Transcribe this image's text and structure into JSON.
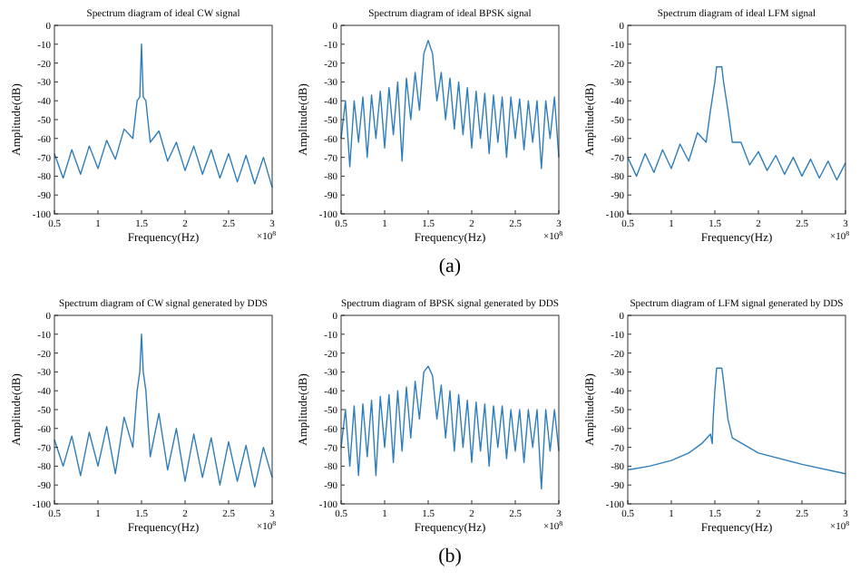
{
  "chart_data": [
    {
      "type": "line",
      "title": "Spectrum diagram of ideal CW signal",
      "xlabel": "Frequency(Hz)",
      "ylabel": "Amplitude(dB)",
      "annotations": [
        "×10$^{8}$"
      ],
      "xlim": [
        0.5,
        3
      ],
      "xticks": [
        0.5,
        1,
        1.5,
        2,
        2.5,
        3
      ],
      "ylim": [
        -100,
        0
      ],
      "yticks": [
        -100,
        -90,
        -80,
        -70,
        -60,
        -50,
        -40,
        -30,
        -20,
        -10,
        0
      ],
      "grid": false,
      "marker": "none",
      "line_style": "solid",
      "x": [
        0.5,
        0.6,
        0.7,
        0.8,
        0.9,
        1.0,
        1.1,
        1.2,
        1.3,
        1.4,
        1.45,
        1.48,
        1.5,
        1.52,
        1.55,
        1.6,
        1.7,
        1.8,
        1.9,
        2.0,
        2.1,
        2.2,
        2.3,
        2.4,
        2.5,
        2.6,
        2.7,
        2.8,
        2.9,
        3.0
      ],
      "series": [
        {
          "color": "#2f7ebc",
          "values": [
            -68,
            -81,
            -66,
            -79,
            -64,
            -76,
            -61,
            -71,
            -55,
            -60,
            -40,
            -38,
            -10,
            -38,
            -40,
            -62,
            -56,
            -72,
            -62,
            -77,
            -64,
            -79,
            -66,
            -81,
            -68,
            -83,
            -69,
            -84,
            -70,
            -86
          ]
        }
      ]
    },
    {
      "type": "line",
      "title": "Spectrum diagram of ideal BPSK signal",
      "xlabel": "Frequency(Hz)",
      "ylabel": "Amplitude(dB)",
      "annotations": [
        "×10$^{8}$",
        "(a)"
      ],
      "xlim": [
        0.5,
        3
      ],
      "xticks": [
        0.5,
        1,
        1.5,
        2,
        2.5,
        3
      ],
      "ylim": [
        -100,
        0
      ],
      "yticks": [
        -100,
        -90,
        -80,
        -70,
        -60,
        -50,
        -40,
        -30,
        -20,
        -10,
        0
      ],
      "grid": false,
      "marker": "none",
      "line_style": "solid",
      "x": [
        0.5,
        0.55,
        0.6,
        0.65,
        0.7,
        0.75,
        0.8,
        0.85,
        0.9,
        0.95,
        1.0,
        1.05,
        1.1,
        1.15,
        1.2,
        1.25,
        1.3,
        1.35,
        1.4,
        1.45,
        1.5,
        1.55,
        1.6,
        1.65,
        1.7,
        1.75,
        1.8,
        1.85,
        1.9,
        1.95,
        2.0,
        2.05,
        2.1,
        2.15,
        2.2,
        2.25,
        2.3,
        2.35,
        2.4,
        2.45,
        2.5,
        2.55,
        2.6,
        2.65,
        2.7,
        2.75,
        2.8,
        2.85,
        2.9,
        2.95,
        3.0
      ],
      "series": [
        {
          "color": "#2f7ebc",
          "values": [
            -60,
            -40,
            -75,
            -40,
            -62,
            -38,
            -70,
            -37,
            -60,
            -35,
            -65,
            -33,
            -58,
            -30,
            -72,
            -28,
            -50,
            -25,
            -45,
            -15,
            -8,
            -15,
            -40,
            -25,
            -50,
            -28,
            -55,
            -30,
            -58,
            -33,
            -65,
            -35,
            -60,
            -36,
            -68,
            -37,
            -62,
            -38,
            -70,
            -38,
            -60,
            -39,
            -66,
            -40,
            -62,
            -40,
            -76,
            -40,
            -60,
            -38,
            -70
          ]
        }
      ]
    },
    {
      "type": "line",
      "title": "Spectrum diagram of ideal LFM signal",
      "xlabel": "Frequency(Hz)",
      "ylabel": "Amplitude(dB)",
      "annotations": [
        "×10$^{8}$"
      ],
      "xlim": [
        0.5,
        3
      ],
      "xticks": [
        0.5,
        1,
        1.5,
        2,
        2.5,
        3
      ],
      "ylim": [
        -100,
        0
      ],
      "yticks": [
        -100,
        -90,
        -80,
        -70,
        -60,
        -50,
        -40,
        -30,
        -20,
        -10,
        0
      ],
      "grid": false,
      "marker": "none",
      "line_style": "solid",
      "x": [
        0.5,
        0.6,
        0.7,
        0.8,
        0.9,
        1.0,
        1.1,
        1.2,
        1.3,
        1.4,
        1.45,
        1.5,
        1.52,
        1.58,
        1.6,
        1.65,
        1.7,
        1.8,
        1.9,
        2.0,
        2.1,
        2.2,
        2.3,
        2.4,
        2.5,
        2.6,
        2.7,
        2.8,
        2.9,
        3.0
      ],
      "series": [
        {
          "color": "#2f7ebc",
          "values": [
            -70,
            -80,
            -68,
            -78,
            -66,
            -76,
            -63,
            -72,
            -57,
            -62,
            -45,
            -30,
            -22,
            -22,
            -30,
            -45,
            -62,
            -62,
            -74,
            -67,
            -77,
            -69,
            -79,
            -70,
            -80,
            -71,
            -81,
            -72,
            -82,
            -73
          ]
        }
      ]
    },
    {
      "type": "line",
      "title": "Spectrum diagram of CW signal generated by DDS",
      "xlabel": "Frequency(Hz)",
      "ylabel": "Amplitude(dB)",
      "annotations": [
        "×10$^{8}$"
      ],
      "xlim": [
        0.5,
        3
      ],
      "xticks": [
        0.5,
        1,
        1.5,
        2,
        2.5,
        3
      ],
      "ylim": [
        -100,
        0
      ],
      "yticks": [
        -100,
        -90,
        -80,
        -70,
        -60,
        -50,
        -40,
        -30,
        -20,
        -10,
        0
      ],
      "grid": false,
      "marker": "none",
      "line_style": "solid",
      "x": [
        0.5,
        0.6,
        0.7,
        0.8,
        0.9,
        1.0,
        1.1,
        1.2,
        1.3,
        1.4,
        1.45,
        1.48,
        1.5,
        1.52,
        1.55,
        1.6,
        1.7,
        1.8,
        1.9,
        2.0,
        2.1,
        2.2,
        2.3,
        2.4,
        2.5,
        2.6,
        2.7,
        2.8,
        2.9,
        3.0
      ],
      "series": [
        {
          "color": "#2f7ebc",
          "values": [
            -66,
            -80,
            -64,
            -85,
            -62,
            -80,
            -59,
            -84,
            -54,
            -70,
            -40,
            -30,
            -10,
            -30,
            -40,
            -75,
            -52,
            -82,
            -60,
            -88,
            -63,
            -86,
            -65,
            -90,
            -67,
            -88,
            -69,
            -91,
            -70,
            -86
          ]
        }
      ]
    },
    {
      "type": "line",
      "title": "Spectrum diagram of BPSK signal generated by DDS",
      "xlabel": "Frequency(Hz)",
      "ylabel": "Amplitude(dB)",
      "annotations": [
        "×10$^{8}$",
        "(b)"
      ],
      "xlim": [
        0.5,
        3
      ],
      "xticks": [
        0.5,
        1,
        1.5,
        2,
        2.5,
        3
      ],
      "ylim": [
        -100,
        0
      ],
      "yticks": [
        -100,
        -90,
        -80,
        -70,
        -60,
        -50,
        -40,
        -30,
        -20,
        -10,
        0
      ],
      "grid": false,
      "marker": "none",
      "line_style": "solid",
      "x": [
        0.5,
        0.55,
        0.6,
        0.65,
        0.7,
        0.75,
        0.8,
        0.85,
        0.9,
        0.95,
        1.0,
        1.05,
        1.1,
        1.15,
        1.2,
        1.25,
        1.3,
        1.35,
        1.4,
        1.45,
        1.5,
        1.55,
        1.6,
        1.65,
        1.7,
        1.75,
        1.8,
        1.85,
        1.9,
        1.95,
        2.0,
        2.05,
        2.1,
        2.15,
        2.2,
        2.25,
        2.3,
        2.35,
        2.4,
        2.45,
        2.5,
        2.55,
        2.6,
        2.65,
        2.7,
        2.75,
        2.8,
        2.85,
        2.9,
        2.95,
        3.0
      ],
      "series": [
        {
          "color": "#2f7ebc",
          "values": [
            -70,
            -50,
            -80,
            -48,
            -85,
            -47,
            -75,
            -45,
            -85,
            -43,
            -70,
            -42,
            -78,
            -40,
            -72,
            -38,
            -65,
            -35,
            -55,
            -30,
            -27,
            -32,
            -55,
            -37,
            -65,
            -40,
            -72,
            -42,
            -70,
            -45,
            -78,
            -46,
            -72,
            -47,
            -80,
            -48,
            -70,
            -48,
            -76,
            -50,
            -72,
            -50,
            -78,
            -50,
            -70,
            -50,
            -92,
            -50,
            -72,
            -50,
            -72
          ]
        }
      ]
    },
    {
      "type": "line",
      "title": "Spectrum diagram of LFM signal generated by DDS",
      "xlabel": "Frequency(Hz)",
      "ylabel": "Amplitude(dB)",
      "annotations": [
        "×10$^{8}$"
      ],
      "xlim": [
        0.5,
        3
      ],
      "xticks": [
        0.5,
        1,
        1.5,
        2,
        2.5,
        3
      ],
      "ylim": [
        -100,
        0
      ],
      "yticks": [
        -100,
        -90,
        -80,
        -70,
        -60,
        -50,
        -40,
        -30,
        -20,
        -10,
        0
      ],
      "grid": false,
      "marker": "none",
      "line_style": "solid",
      "x": [
        0.5,
        0.75,
        1.0,
        1.2,
        1.35,
        1.45,
        1.47,
        1.48,
        1.5,
        1.52,
        1.58,
        1.6,
        1.65,
        1.7,
        2.0,
        2.5,
        3.0
      ],
      "series": [
        {
          "color": "#2f7ebc",
          "values": [
            -82,
            -80,
            -77,
            -73,
            -68,
            -63,
            -68,
            -55,
            -40,
            -28,
            -28,
            -35,
            -55,
            -65,
            -73,
            -79,
            -84
          ]
        }
      ]
    }
  ]
}
